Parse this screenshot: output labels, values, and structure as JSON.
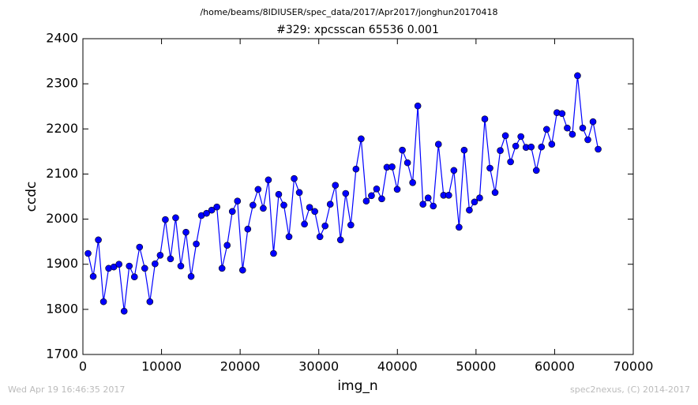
{
  "chart_data": {
    "type": "line",
    "suptitle": "/home/beams/8IDIUSER/spec_data/2017/Apr2017/jonghun20170418",
    "title": "#329: xpcsscan 65536 0.001",
    "xlabel": "img_n",
    "ylabel": "ccdc",
    "footer_left": "Wed Apr 19 16:46:35 2017",
    "footer_right": "spec2nexus, (C) 2014-2017",
    "x": [
      655,
      1311,
      1966,
      2621,
      3277,
      3932,
      4588,
      5243,
      5898,
      6554,
      7209,
      7864,
      8520,
      9175,
      9830,
      10486,
      11141,
      11796,
      12452,
      13107,
      13763,
      14418,
      15073,
      15729,
      16384,
      17039,
      17695,
      18350,
      19005,
      19661,
      20316,
      20972,
      21627,
      22282,
      22938,
      23593,
      24248,
      24904,
      25559,
      26214,
      26870,
      27525,
      28180,
      28836,
      29491,
      30147,
      30802,
      31457,
      32113,
      32768,
      33423,
      34079,
      34734,
      35389,
      36045,
      36700,
      37356,
      38011,
      38666,
      39322,
      39977,
      40632,
      41288,
      41943,
      42598,
      43254,
      43909,
      44564,
      45220,
      45875,
      46531,
      47186,
      47841,
      48497,
      49152,
      49807,
      50463,
      51118,
      51773,
      52429,
      53084,
      53740,
      54395,
      55050,
      55706,
      56361,
      57016,
      57672,
      58327,
      58982,
      59638,
      60293,
      60948,
      61604,
      62259,
      62915,
      63570,
      64225,
      64881,
      65536
    ],
    "series": [
      {
        "name": "ccdc",
        "color": "#0000ff",
        "values": [
          1924,
          1873,
          1954,
          1817,
          1891,
          1894,
          1900,
          1796,
          1896,
          1872,
          1938,
          1891,
          1817,
          1901,
          1920,
          1999,
          1912,
          2003,
          1896,
          1971,
          1873,
          1945,
          2008,
          2013,
          2020,
          2027,
          1891,
          1942,
          2017,
          2040,
          1887,
          1978,
          2031,
          2066,
          2024,
          2087,
          1924,
          2055,
          2031,
          1961,
          2090,
          2059,
          1989,
          2026,
          2017,
          1961,
          1985,
          2033,
          2075,
          1954,
          2057,
          1987,
          2111,
          2178,
          2040,
          2052,
          2067,
          2045,
          2115,
          2116,
          2066,
          2153,
          2125,
          2081,
          2251,
          2033,
          2047,
          2029,
          2166,
          2053,
          2053,
          2108,
          1982,
          2153,
          2020,
          2038,
          2047,
          2222,
          2113,
          2059,
          2152,
          2185,
          2127,
          2162,
          2183,
          2159,
          2160,
          2108,
          2160,
          2199,
          2166,
          2236,
          2234,
          2202,
          2188,
          2318,
          2202,
          2176,
          2216,
          2155
        ]
      }
    ],
    "xlim": [
      0,
      70000
    ],
    "xticks": [
      0,
      10000,
      20000,
      30000,
      40000,
      50000,
      60000,
      70000
    ],
    "ylim": [
      1700,
      2400
    ],
    "yticks": [
      1700,
      1800,
      1900,
      2000,
      2100,
      2200,
      2300,
      2400
    ]
  }
}
